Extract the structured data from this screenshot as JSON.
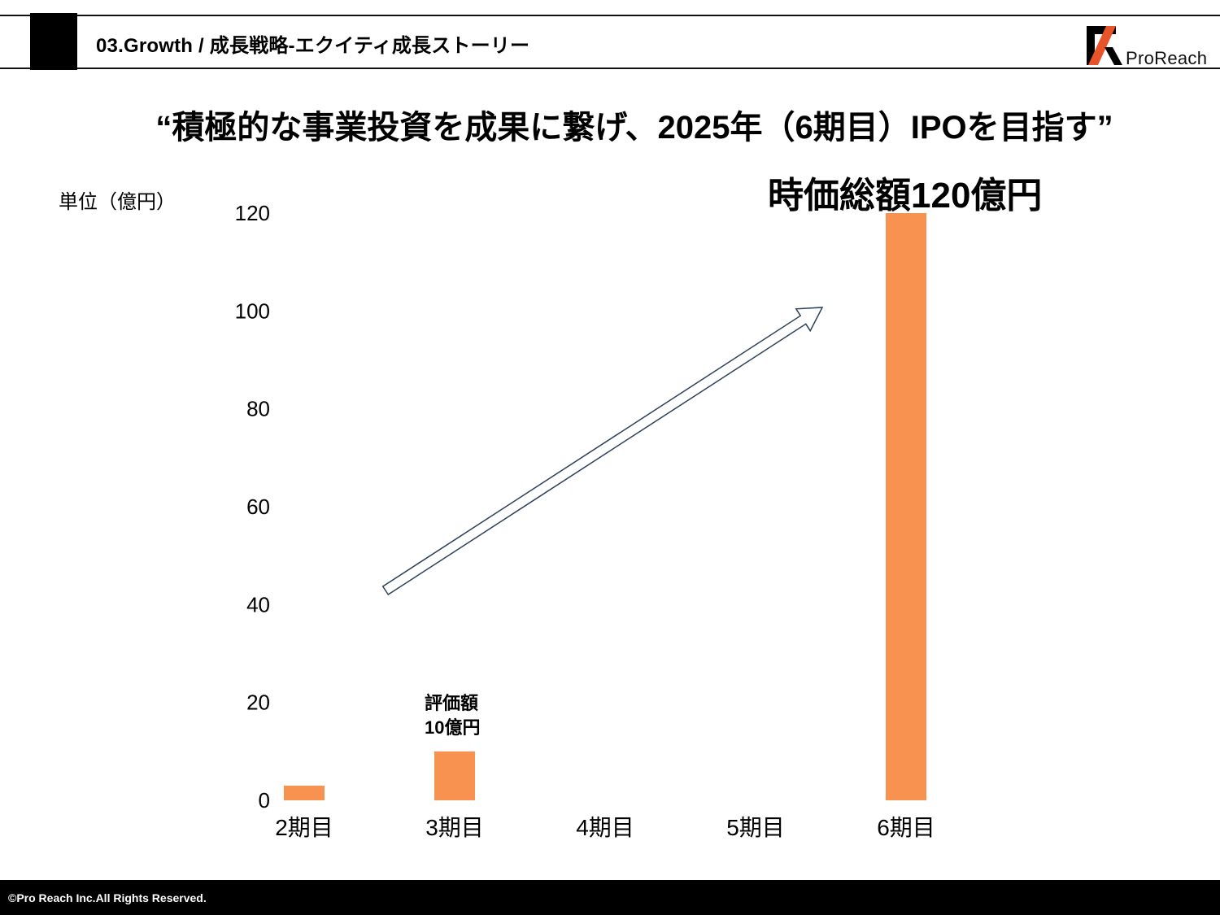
{
  "header": {
    "section": "03.Growth / 成長戦略-エクイティ成長ストーリー",
    "logo_text": "ProReach"
  },
  "headline": "“積極的な事業投資を成果に繋げ、2025年（6期目）IPOを目指す”",
  "unit_label": "単位（億円）",
  "callouts": {
    "market_cap": "時価総額120億円",
    "valuation_line1": "評価額",
    "valuation_line2": "10億円"
  },
  "chart_data": {
    "type": "bar",
    "title": "",
    "xlabel": "",
    "ylabel": "単位（億円）",
    "categories": [
      "2期目",
      "3期目",
      "4期目",
      "5期目",
      "6期目"
    ],
    "values": [
      3,
      10,
      0,
      0,
      120
    ],
    "ylim": [
      0,
      120
    ],
    "yticks": [
      0,
      20,
      40,
      60,
      80,
      100,
      120
    ],
    "bar_color": "#F79250",
    "grid": false,
    "legend": "none"
  },
  "colors": {
    "arrow_stroke": "#2E3F5C",
    "arrow_fill": "#ffffff",
    "footer_bg": "#000000",
    "logo_accent": "#E8532A"
  },
  "footer": {
    "copyright": "©Pro Reach  Inc.All Rights Reserved."
  }
}
